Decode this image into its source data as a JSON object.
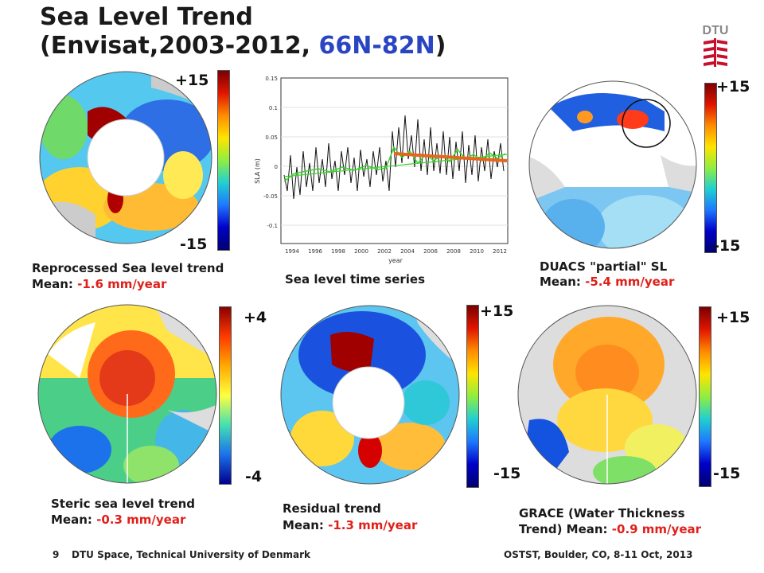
{
  "slide": {
    "title_line1": "Sea Level Trend",
    "title_line2_prefix": "(Envisat,2003-2012, ",
    "title_line2_highlight": "66N-82N",
    "title_line2_suffix": ")",
    "logo_text": "DTU"
  },
  "panels": {
    "reprocessed": {
      "caption": "Reprocessed Sea level trend",
      "mean_prefix": "Mean: ",
      "mean_value": "-1.6 mm/year",
      "max_label": "+15",
      "min_label": "-15"
    },
    "timeseries": {
      "caption": "Sea level time series",
      "ylabel": "SLA (m)",
      "xlabel": "year",
      "yticks": [
        "0.15",
        "0.1",
        "0.05",
        "0",
        "-0.05",
        "-0.1"
      ],
      "xticks": [
        "1994",
        "1996",
        "1998",
        "2000",
        "2002",
        "2004",
        "2006",
        "2008",
        "2010",
        "2012"
      ]
    },
    "duacs": {
      "caption": "DUACS \"partial\" SL",
      "mean_prefix": "Mean: ",
      "mean_value": "-5.4 mm/year",
      "max_label": "+15",
      "min_label": "-15"
    },
    "steric": {
      "caption": "Steric sea level trend",
      "mean_prefix": "Mean: ",
      "mean_value": "-0.3 mm/year",
      "max_label": "+4",
      "min_label": "-4"
    },
    "residual": {
      "caption": "Residual trend",
      "mean_prefix": "Mean: ",
      "mean_value": "-1.3 mm/year",
      "max_label": "+15",
      "min_label": "-15"
    },
    "grace": {
      "caption_line1": "GRACE (Water Thickness",
      "caption_line2_prefix": "Trend) Mean: ",
      "mean_value": "-0.9 mm/year",
      "max_label": "+15",
      "min_label": "-15"
    }
  },
  "footer": {
    "page_number": "9",
    "org": "DTU Space, Technical University of Denmark",
    "event": "OSTST, Boulder, CO, 8-11 Oct, 2013"
  },
  "colors": {
    "highlight_blue": "#2a45c2",
    "mean_red": "#e0201a",
    "trend_orange": "#e8661c",
    "smooth_green": "#39d62a"
  }
}
